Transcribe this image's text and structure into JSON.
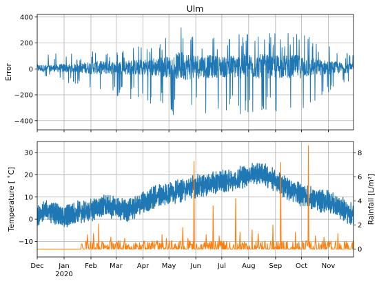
{
  "colors": {
    "series_blue": "#1f77b4",
    "series_orange": "#ff7f0e",
    "grid": "#b0b0b0",
    "axes": "#000000",
    "background": "#ffffff"
  },
  "chart_data": [
    {
      "id": "error",
      "type": "line",
      "title": "Ulm",
      "xlabel": "",
      "ylabel": "Error",
      "x_axis": "date",
      "xlim": [
        "2019-12-01",
        "2020-11-30"
      ],
      "ylim": [
        -470,
        420
      ],
      "yticks": [
        -400,
        -200,
        0,
        200,
        400
      ],
      "grid": true,
      "x_tick_labels_shown": false,
      "series": [
        {
          "color_key": "series_blue",
          "description_points": "approximate envelope of a dense noisy series (daily samples)",
          "x": [
            "2019-12-01",
            "2019-12-15",
            "2020-01-01",
            "2020-01-15",
            "2020-02-01",
            "2020-02-15",
            "2020-03-01",
            "2020-03-15",
            "2020-04-01",
            "2020-04-15",
            "2020-05-01",
            "2020-05-15",
            "2020-06-01",
            "2020-06-15",
            "2020-07-01",
            "2020-07-15",
            "2020-08-01",
            "2020-08-15",
            "2020-09-01",
            "2020-09-15",
            "2020-10-01",
            "2020-10-15",
            "2020-11-01",
            "2020-11-15",
            "2020-11-30"
          ],
          "upper": [
            130,
            110,
            140,
            100,
            150,
            130,
            160,
            150,
            200,
            230,
            250,
            380,
            300,
            260,
            280,
            300,
            280,
            260,
            290,
            300,
            310,
            230,
            180,
            150,
            120
          ],
          "lower": [
            -80,
            -60,
            -100,
            -120,
            -200,
            -230,
            -210,
            -260,
            -230,
            -300,
            -330,
            -420,
            -390,
            -380,
            -300,
            -350,
            -390,
            -410,
            -360,
            -340,
            -330,
            -260,
            -200,
            -150,
            -100
          ]
        }
      ]
    },
    {
      "id": "weather",
      "type": "line",
      "title": "",
      "xlabel": "",
      "ylabel": "Temperature [$^\\circ$C]",
      "ylabel_display": "Temperature [ ˚C]",
      "y2label": "Rainfall [L/m²]",
      "x_axis": "date",
      "xlim": [
        "2019-12-01",
        "2020-11-30"
      ],
      "ylim": [
        -17,
        35
      ],
      "yticks": [
        -10,
        0,
        10,
        20,
        30
      ],
      "y2lim": [
        -0.65,
        8.95
      ],
      "y2ticks": [
        0,
        2,
        4,
        6,
        8
      ],
      "x_tick_labels": [
        "Dec",
        "Jan\n2020",
        "Feb",
        "Mar",
        "Apr",
        "May",
        "Jun",
        "Jul",
        "Aug",
        "Sep",
        "Oct",
        "Nov"
      ],
      "x_tick_dates": [
        "2019-12-01",
        "2020-01-01",
        "2020-02-01",
        "2020-03-01",
        "2020-04-01",
        "2020-05-01",
        "2020-06-01",
        "2020-07-01",
        "2020-08-01",
        "2020-09-01",
        "2020-10-01",
        "2020-11-01"
      ],
      "grid": true,
      "series": [
        {
          "name": "Temperature",
          "axis": "left",
          "color_key": "series_blue",
          "x": [
            "2019-12-01",
            "2019-12-15",
            "2020-01-01",
            "2020-01-15",
            "2020-02-01",
            "2020-02-15",
            "2020-03-01",
            "2020-03-15",
            "2020-04-01",
            "2020-04-15",
            "2020-05-01",
            "2020-05-15",
            "2020-06-01",
            "2020-06-15",
            "2020-07-01",
            "2020-07-15",
            "2020-08-01",
            "2020-08-15",
            "2020-09-01",
            "2020-09-15",
            "2020-10-01",
            "2020-10-15",
            "2020-11-01",
            "2020-11-15",
            "2020-11-30"
          ],
          "values": [
            2,
            4,
            1,
            3,
            4,
            6,
            5,
            4,
            7,
            10,
            12,
            13,
            15,
            16,
            17,
            18,
            20,
            21,
            17,
            14,
            11,
            9,
            8,
            5,
            2
          ]
        },
        {
          "name": "Rainfall",
          "axis": "right",
          "color_key": "series_orange",
          "x": [
            "2020-01-28",
            "2020-02-04",
            "2020-02-10",
            "2020-02-24",
            "2020-03-11",
            "2020-04-23",
            "2020-04-28",
            "2020-05-17",
            "2020-05-23",
            "2020-05-30",
            "2020-06-13",
            "2020-06-21",
            "2020-06-28",
            "2020-07-17",
            "2020-07-22",
            "2020-08-05",
            "2020-08-12",
            "2020-08-29",
            "2020-09-07",
            "2020-09-24",
            "2020-10-09",
            "2020-10-17",
            "2020-10-27",
            "2020-11-12"
          ],
          "values": [
            1.2,
            1.3,
            2.1,
            1.0,
            0.9,
            1.2,
            0.9,
            1.8,
            0.9,
            7.3,
            1.2,
            3.6,
            1.1,
            4.2,
            1.4,
            1.6,
            1.3,
            2.0,
            7.2,
            1.4,
            8.6,
            1.1,
            1.0,
            1.3
          ]
        }
      ]
    }
  ]
}
